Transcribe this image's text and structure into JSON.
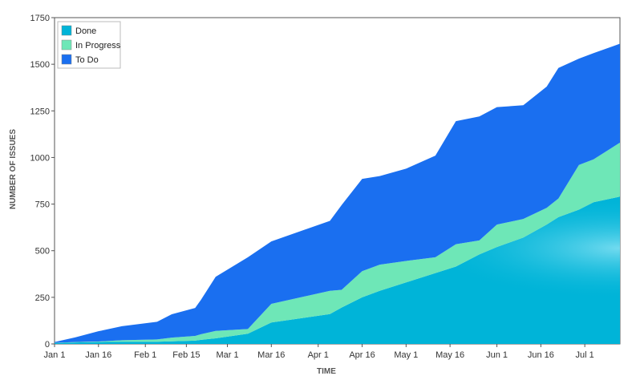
{
  "chart_data": {
    "type": "area",
    "stacked": true,
    "title": "",
    "xlabel": "TIME",
    "ylabel": "NUMBER OF ISSUES",
    "ylim": [
      0,
      1750
    ],
    "yticks": [
      0,
      250,
      500,
      750,
      1000,
      1250,
      1500,
      1750
    ],
    "xlim": [
      "2019-01-01",
      "2019-07-13"
    ],
    "xticks": [
      {
        "date": "2019-01-01",
        "label": "Jan 1"
      },
      {
        "date": "2019-01-16",
        "label": "Jan 16"
      },
      {
        "date": "2019-02-01",
        "label": "Feb 1"
      },
      {
        "date": "2019-02-15",
        "label": "Feb 15"
      },
      {
        "date": "2019-03-01",
        "label": "Mar 1"
      },
      {
        "date": "2019-03-16",
        "label": "Mar 16"
      },
      {
        "date": "2019-04-01",
        "label": "Apr 1"
      },
      {
        "date": "2019-04-16",
        "label": "Apr 16"
      },
      {
        "date": "2019-05-01",
        "label": "May 1"
      },
      {
        "date": "2019-05-16",
        "label": "May 16"
      },
      {
        "date": "2019-06-01",
        "label": "Jun 1"
      },
      {
        "date": "2019-06-16",
        "label": "Jun 16"
      },
      {
        "date": "2019-07-01",
        "label": "Jul 1"
      }
    ],
    "grid": false,
    "legend_position": "top-left",
    "x": [
      "2019-01-01",
      "2019-01-08",
      "2019-01-16",
      "2019-01-24",
      "2019-02-05",
      "2019-02-10",
      "2019-02-18",
      "2019-02-20",
      "2019-02-25",
      "2019-03-08",
      "2019-03-16",
      "2019-04-05",
      "2019-04-09",
      "2019-04-16",
      "2019-04-22",
      "2019-05-01",
      "2019-05-11",
      "2019-05-18",
      "2019-05-26",
      "2019-06-01",
      "2019-06-10",
      "2019-06-18",
      "2019-06-22",
      "2019-06-29",
      "2019-07-04",
      "2019-07-13"
    ],
    "series": [
      {
        "name": "Done",
        "color": "#00b4d8",
        "values": [
          5,
          8,
          10,
          12,
          12,
          14,
          18,
          22,
          30,
          55,
          115,
          160,
          195,
          250,
          285,
          330,
          380,
          415,
          480,
          520,
          570,
          640,
          680,
          720,
          760,
          790
        ]
      },
      {
        "name": "In Progress",
        "color": "#6ee7b7",
        "values": [
          1,
          2,
          3,
          8,
          12,
          20,
          25,
          30,
          40,
          25,
          100,
          125,
          95,
          140,
          140,
          115,
          85,
          120,
          75,
          120,
          100,
          90,
          100,
          240,
          230,
          290
        ]
      },
      {
        "name": "To Do",
        "color": "#1a6ff0",
        "values": [
          4,
          25,
          55,
          75,
          95,
          125,
          150,
          185,
          290,
          385,
          335,
          375,
          455,
          495,
          475,
          495,
          545,
          660,
          665,
          630,
          610,
          650,
          700,
          570,
          570,
          530
        ]
      }
    ]
  }
}
